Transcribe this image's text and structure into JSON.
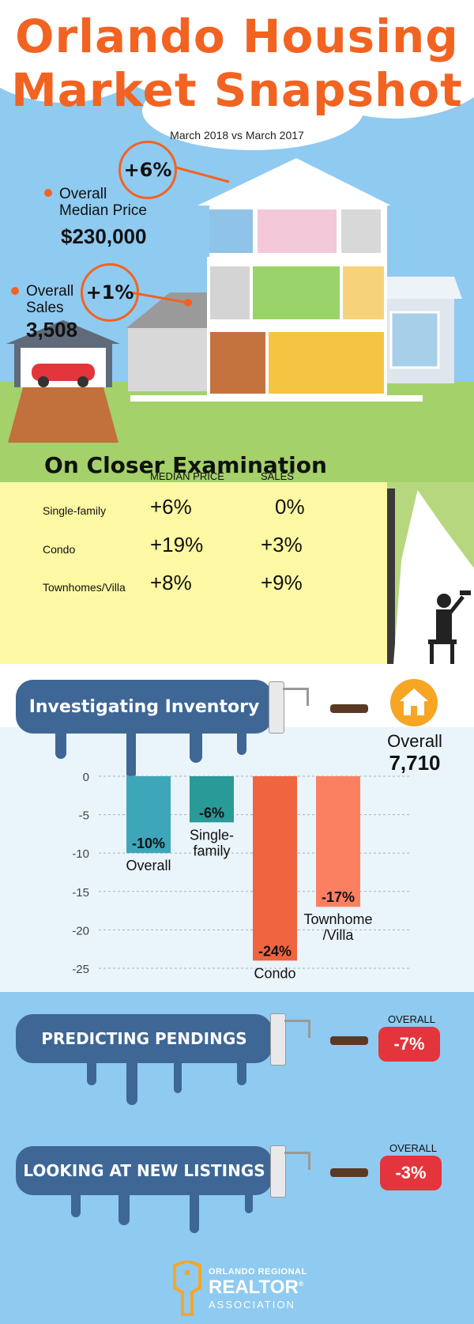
{
  "header": {
    "title_line1": "Orlando Housing",
    "title_line2": "Market Snapshot",
    "subtitle": "March 2018 vs March 2017"
  },
  "price": {
    "change": "+6%",
    "label_line1": "Overall",
    "label_line2": "Median Price",
    "value": "$230,000"
  },
  "sales": {
    "change": "+1%",
    "label_line1": "Overall",
    "label_line2": "Sales",
    "value": "3,508"
  },
  "closer": {
    "title": "On Closer Examination",
    "col_headers": [
      "MEDIAN PRICE",
      "SALES"
    ],
    "rows": [
      {
        "label": "Single-family",
        "median": "+6%",
        "sales": "0%"
      },
      {
        "label": "Condo",
        "median": "+19%",
        "sales": "+3%"
      },
      {
        "label": "Townhomes/Villa",
        "median": "+8%",
        "sales": "+9%"
      }
    ]
  },
  "inventory": {
    "title": "Investigating Inventory",
    "overall_label": "Overall",
    "overall_value": "7,710"
  },
  "chart_data": {
    "type": "bar",
    "categories": [
      "Overall",
      "Single-family",
      "Condo",
      "Townhome/Villa"
    ],
    "category_labels": [
      [
        "Overall"
      ],
      [
        "Single-",
        "family"
      ],
      [
        "Condo"
      ],
      [
        "Townhome",
        "/Villa"
      ]
    ],
    "values": [
      -10,
      -6,
      -24,
      -17
    ],
    "data_labels": [
      "-10%",
      "-6%",
      "-24%",
      "-17%"
    ],
    "yticks": [
      "0",
      "-5",
      "-10",
      "-15",
      "-20",
      "-25"
    ],
    "ylim": [
      -25,
      0
    ],
    "grid": true,
    "colors": [
      "#3da6b8",
      "#2a9a98",
      "#ee6540",
      "#fb8062"
    ]
  },
  "pendings": {
    "title": "PREDICTING PENDINGS",
    "overall_label": "OVERALL",
    "value": "-7%"
  },
  "listings": {
    "title": "LOOKING AT NEW LISTINGS",
    "overall_label": "OVERALL",
    "value": "-3%"
  },
  "footer": {
    "logo_line1": "ORLANDO REGIONAL",
    "logo_line2": "REALTOR",
    "logo_reg": "®",
    "logo_line3": "ASSOCIATION"
  },
  "colors": {
    "orange": "#f26322",
    "banner_blue": "#3e6796",
    "pill_red": "#e3353b",
    "sky": "#8fcaf0",
    "notepad": "#fdf8a3"
  }
}
